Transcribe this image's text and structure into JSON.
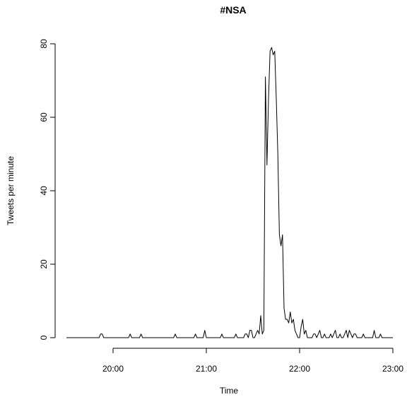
{
  "chart_data": {
    "type": "line",
    "title": "#NSA",
    "xlabel": "Time",
    "ylabel": "Tweets per minute",
    "x_unit": "time of day (HH:MM)",
    "xlim": [
      "19:30",
      "23:00"
    ],
    "ylim": [
      0,
      80
    ],
    "x_ticks": [
      "20:00",
      "21:00",
      "22:00",
      "23:00"
    ],
    "y_ticks": [
      "0",
      "20",
      "40",
      "60",
      "80"
    ],
    "grid": false,
    "legend": "none",
    "line_color": "#000000",
    "series": [
      {
        "x": [
          "19:30",
          "19:51",
          "19:52",
          "19:53",
          "19:54",
          "20:10",
          "20:11",
          "20:12",
          "20:17",
          "20:18",
          "20:19",
          "20:39",
          "20:40",
          "20:41",
          "20:52",
          "20:53",
          "20:54",
          "20:58",
          "20:59",
          "21:00",
          "21:09",
          "21:10",
          "21:11",
          "21:18",
          "21:19",
          "21:20",
          "21:24",
          "21:25",
          "21:26",
          "21:27",
          "21:28",
          "21:29",
          "21:30",
          "21:31",
          "21:32",
          "21:33",
          "21:34",
          "21:35",
          "21:36",
          "21:37",
          "21:38",
          "21:39",
          "21:40",
          "21:41",
          "21:42",
          "21:43",
          "21:44",
          "21:45",
          "21:46",
          "21:47",
          "21:48",
          "21:49",
          "21:50",
          "21:51",
          "21:52",
          "21:53",
          "21:54",
          "21:55",
          "21:56",
          "21:57",
          "21:58",
          "21:59",
          "22:00",
          "22:01",
          "22:02",
          "22:03",
          "22:04",
          "22:05",
          "22:06",
          "22:07",
          "22:08",
          "22:09",
          "22:10",
          "22:11",
          "22:12",
          "22:13",
          "22:14",
          "22:15",
          "22:16",
          "22:17",
          "22:18",
          "22:19",
          "22:20",
          "22:21",
          "22:22",
          "22:23",
          "22:24",
          "22:25",
          "22:26",
          "22:27",
          "22:28",
          "22:29",
          "22:30",
          "22:31",
          "22:32",
          "22:33",
          "22:34",
          "22:35",
          "22:36",
          "22:37",
          "22:38",
          "22:39",
          "22:40",
          "22:41",
          "22:42",
          "22:43",
          "22:44",
          "22:45",
          "22:46",
          "22:47",
          "22:48",
          "22:49",
          "22:50",
          "22:51",
          "22:52",
          "22:53",
          "22:54",
          "22:55",
          "22:56",
          "22:57",
          "22:58",
          "22:59",
          "23:00"
        ],
        "y": [
          0,
          0,
          1,
          1,
          0,
          0,
          1,
          0,
          0,
          1,
          0,
          0,
          1,
          0,
          0,
          1,
          0,
          0,
          2,
          0,
          0,
          1,
          0,
          0,
          1,
          0,
          0,
          1,
          1,
          0,
          2,
          2,
          0,
          0,
          1,
          2,
          1,
          6,
          1,
          2,
          71,
          47,
          65,
          78,
          79,
          77,
          78,
          65,
          50,
          28,
          25,
          28,
          8,
          5,
          5,
          4,
          7,
          4,
          5,
          2,
          1,
          0,
          0,
          3,
          5,
          1,
          2,
          0,
          0,
          0,
          0,
          1,
          1,
          0,
          1,
          2,
          0,
          0,
          1,
          0,
          0,
          0,
          1,
          0,
          1,
          2,
          0,
          0,
          1,
          0,
          0,
          1,
          2,
          0,
          2,
          1,
          0,
          1,
          1,
          0,
          0,
          0,
          0,
          1,
          0,
          0,
          0,
          0,
          0,
          0,
          2,
          0,
          0,
          0,
          1,
          0,
          0,
          0,
          0,
          0,
          0,
          0,
          0
        ]
      }
    ]
  }
}
